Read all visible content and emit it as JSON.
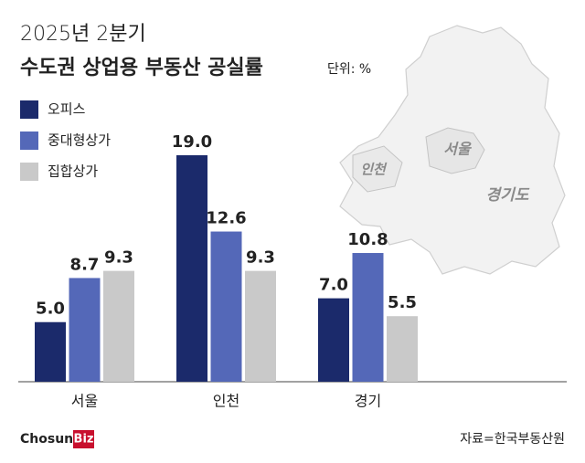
{
  "chart_data": {
    "type": "bar",
    "title": "2025년 2분기",
    "subtitle": "수도권 상업용 부동산 공실률",
    "unit": "단위: %",
    "categories": [
      "서울",
      "인천",
      "경기"
    ],
    "series": [
      {
        "name": "오피스",
        "color": "#1b2a6b",
        "values": [
          5.0,
          19.0,
          7.0
        ],
        "value_labels": [
          "5.0",
          "19.0",
          "7.0"
        ]
      },
      {
        "name": "중대형상가",
        "color": "#5468b8",
        "values": [
          8.7,
          12.6,
          10.8
        ],
        "value_labels": [
          "8.7",
          "12.6",
          "10.8"
        ]
      },
      {
        "name": "집합상가",
        "color": "#c9c9c9",
        "values": [
          9.3,
          9.3,
          5.5
        ],
        "value_labels": [
          "9.3",
          "9.3",
          "5.5"
        ]
      }
    ],
    "annotations": [
      "인천",
      "서울",
      "경기도"
    ],
    "source": "자료=한국부동산원",
    "logo": {
      "text": "Chosun",
      "badge": "Biz"
    }
  }
}
